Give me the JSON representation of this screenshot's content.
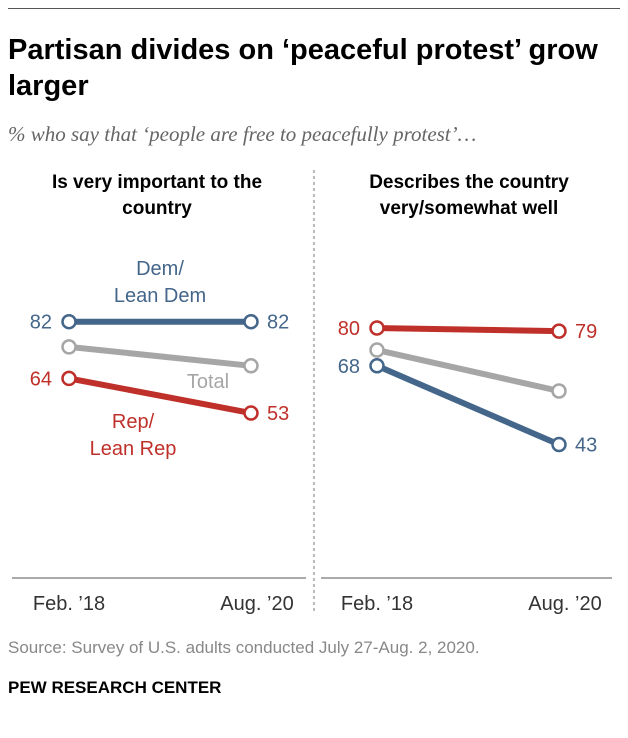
{
  "title": "Partisan divides on ‘peaceful protest’ grow larger",
  "subtitle": "% who say that ‘people are free to peacefully protest’…",
  "source": "Source: Survey of U.S. adults conducted July 27-Aug. 2, 2020.",
  "brand": "PEW RESEARCH CENTER",
  "colors": {
    "dem": "#44668a",
    "rep": "#c0302a",
    "total": "#a6a6a6"
  },
  "chart_data": [
    {
      "type": "line",
      "title": "Is very important to the country",
      "x": [
        "Feb. ’18",
        "Aug. ’20"
      ],
      "ylim": [
        0,
        100
      ],
      "series": [
        {
          "name": "Dem/ Lean Dem",
          "key": "dem",
          "values": [
            82,
            82
          ],
          "labels": [
            "82",
            "82"
          ]
        },
        {
          "name": "Total",
          "key": "total",
          "values": [
            74,
            68
          ],
          "labels": [
            null,
            null
          ]
        },
        {
          "name": "Rep/ Lean Rep",
          "key": "rep",
          "values": [
            64,
            53
          ],
          "labels": [
            "64",
            "53"
          ]
        }
      ],
      "series_labels": {
        "dem": [
          "Dem/",
          "Lean Dem"
        ],
        "total": [
          "Total"
        ],
        "rep": [
          "Rep/",
          "Lean Rep"
        ]
      }
    },
    {
      "type": "line",
      "title": "Describes the country very/somewhat well",
      "x": [
        "Feb. ’18",
        "Aug. ’20"
      ],
      "ylim": [
        0,
        100
      ],
      "series": [
        {
          "name": "Rep/ Lean Rep",
          "key": "rep",
          "values": [
            80,
            79
          ],
          "labels": [
            "80",
            "79"
          ]
        },
        {
          "name": "Total",
          "key": "total",
          "values": [
            73,
            60
          ],
          "labels": [
            null,
            null
          ]
        },
        {
          "name": "Dem/ Lean Dem",
          "key": "dem",
          "values": [
            68,
            43
          ],
          "labels": [
            "68",
            "43"
          ]
        }
      ]
    }
  ]
}
